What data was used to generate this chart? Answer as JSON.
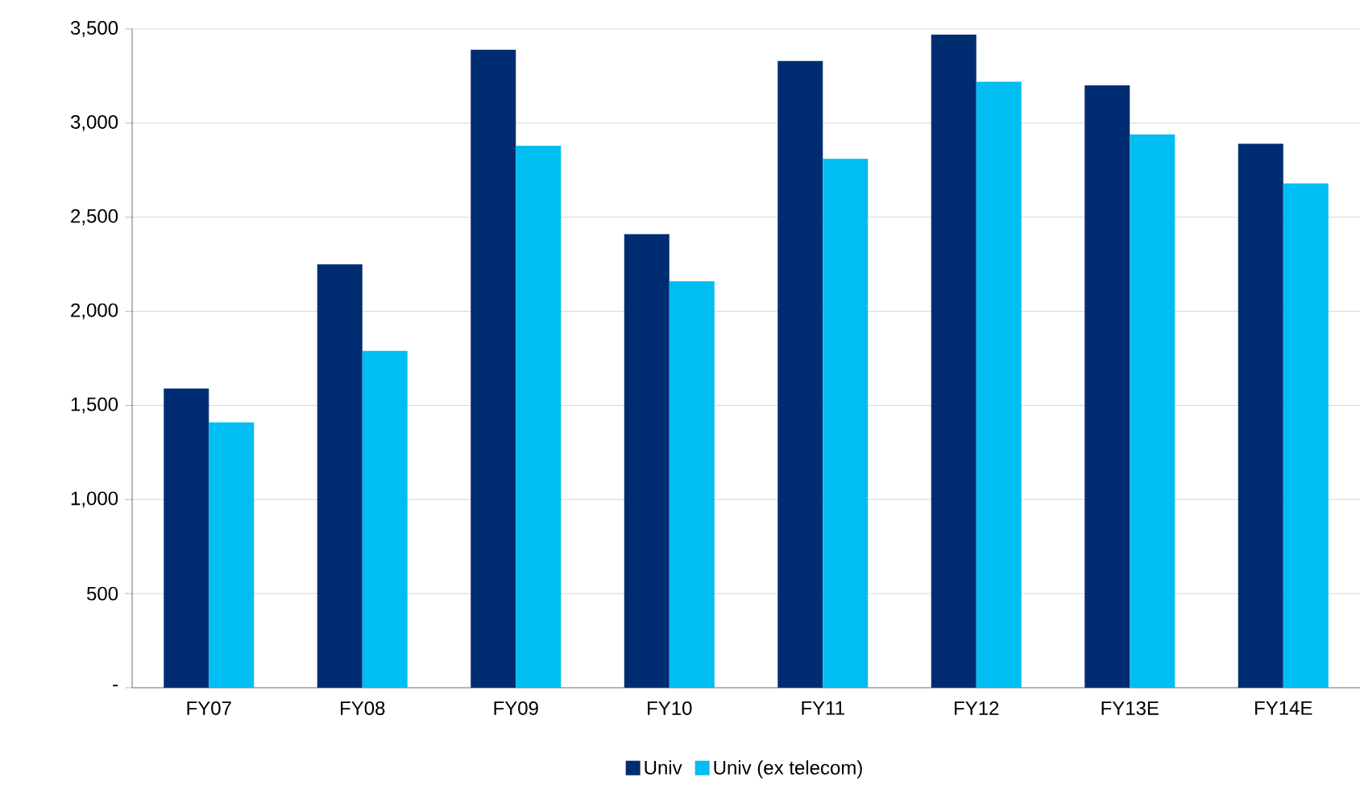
{
  "chart_data": {
    "type": "bar",
    "categories": [
      "FY07",
      "FY08",
      "FY09",
      "FY10",
      "FY11",
      "FY12",
      "FY13E",
      "FY14E"
    ],
    "series": [
      {
        "name": "Univ",
        "color": "#002d72",
        "values": [
          1590,
          2250,
          3390,
          2410,
          3330,
          3470,
          3200,
          2890
        ]
      },
      {
        "name": "Univ (ex telecom)",
        "color": "#00bdf2",
        "values": [
          1410,
          1790,
          2880,
          2160,
          2810,
          3220,
          2940,
          2680
        ]
      }
    ],
    "ylim": [
      0,
      3500
    ],
    "yticks": [
      {
        "value": 0,
        "label": "-"
      },
      {
        "value": 500,
        "label": "500"
      },
      {
        "value": 1000,
        "label": "1,000"
      },
      {
        "value": 1500,
        "label": "1,500"
      },
      {
        "value": 2000,
        "label": "2,000"
      },
      {
        "value": 2500,
        "label": "2,500"
      },
      {
        "value": 3000,
        "label": "3,000"
      },
      {
        "value": 3500,
        "label": "3,500"
      }
    ],
    "grid": "y",
    "legend": "bottom"
  }
}
